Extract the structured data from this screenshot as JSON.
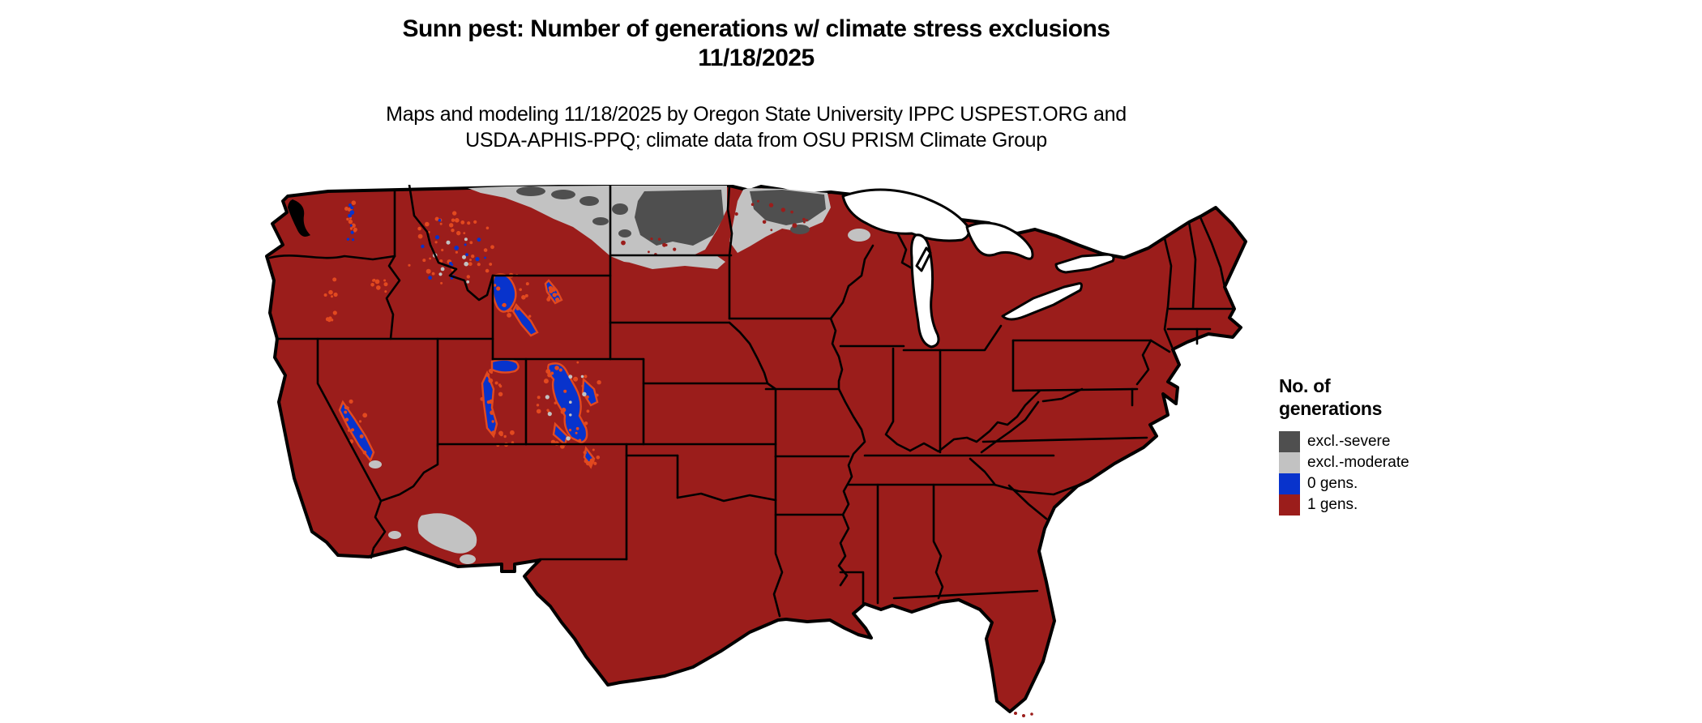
{
  "title": {
    "line1": "Sunn pest: Number of generations w/ climate stress exclusions",
    "line2": "11/18/2025"
  },
  "subtitle": {
    "line1": "Maps and modeling 11/18/2025 by Oregon State University IPPC USPEST.ORG and",
    "line2": "USDA-APHIS-PPQ; climate data from OSU PRISM Climate Group"
  },
  "legend": {
    "title_line1": "No. of",
    "title_line2": "generations",
    "items": [
      {
        "label": "excl.-severe",
        "color": "#4F4F4F"
      },
      {
        "label": "excl.-moderate",
        "color": "#C2C2C2"
      },
      {
        "label": "0 gens.",
        "color": "#0833CC"
      },
      {
        "label": "1 gens.",
        "color": "#9B1D1B"
      }
    ]
  },
  "map": {
    "region": "Contiguous United States",
    "date_shown": "11/18/2025",
    "colors": {
      "one_generation_red": "#9B1D1B",
      "zero_generation_blue": "#0833CC",
      "exclusion_severe_gray": "#4F4F4F",
      "exclusion_moderate_gray": "#C2C2C2",
      "class_edge_orange": "#E2491F",
      "state_borders": "#000000",
      "background": "#FFFFFF"
    },
    "legend_meaning": "Number of Sunn pest generations with climate stress exclusions; severe/moderate exclusion zones across North Dakota, Minnesota and northern Montana; 0-generation zones in high mountain areas (Cascades, Rockies, Wasatch, Sierra Nevada); 1 generation elsewhere"
  }
}
